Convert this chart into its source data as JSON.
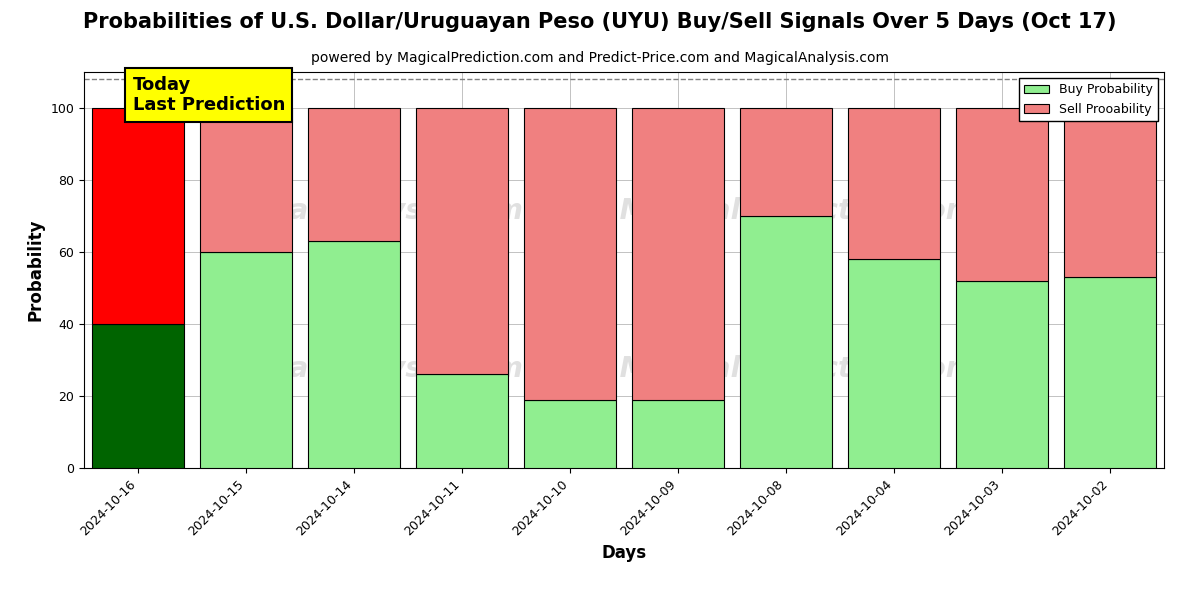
{
  "title": "Probabilities of U.S. Dollar/Uruguayan Peso (UYU) Buy/Sell Signals Over 5 Days (Oct 17)",
  "subtitle": "powered by MagicalPrediction.com and Predict-Price.com and MagicalAnalysis.com",
  "xlabel": "Days",
  "ylabel": "Probability",
  "days": [
    "2024-10-16",
    "2024-10-15",
    "2024-10-14",
    "2024-10-11",
    "2024-10-10",
    "2024-10-09",
    "2024-10-08",
    "2024-10-04",
    "2024-10-03",
    "2024-10-02"
  ],
  "buy_values": [
    40,
    60,
    63,
    26,
    19,
    19,
    70,
    58,
    52,
    53
  ],
  "sell_values": [
    60,
    40,
    37,
    74,
    81,
    81,
    30,
    42,
    48,
    47
  ],
  "buy_colors_today": "#006400",
  "sell_colors_today": "#ff0000",
  "buy_colors_rest": "#90EE90",
  "sell_colors_rest": "#F08080",
  "today_label": "Today\nLast Prediction",
  "legend_buy": "Buy Probability",
  "legend_sell": "Sell Prooability",
  "ylim": [
    0,
    110
  ],
  "yticks": [
    0,
    20,
    40,
    60,
    80,
    100
  ],
  "dashed_line_y": 108,
  "bar_width": 0.85,
  "figsize": [
    12,
    6
  ],
  "dpi": 100,
  "bg_color": "#ffffff",
  "grid_color": "#aaaaaa",
  "title_fontsize": 15,
  "subtitle_fontsize": 10,
  "axis_label_fontsize": 12,
  "tick_fontsize": 9,
  "watermark_lines": [
    "calAnalysis.com    MagicalPrediction.com",
    "calAnalysis.com    MagicalPrediction.com"
  ]
}
